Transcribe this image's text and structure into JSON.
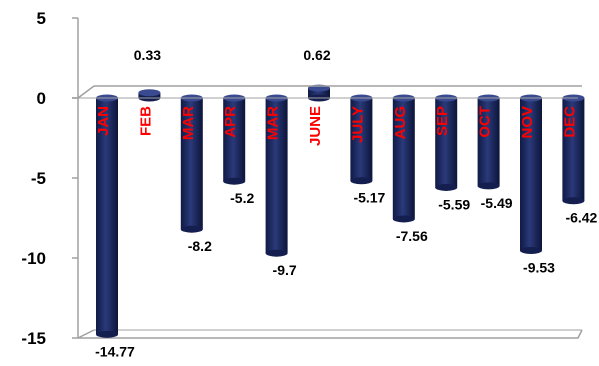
{
  "chart_data": {
    "type": "bar",
    "title": "",
    "xlabel": "",
    "ylabel": "",
    "categories": [
      "JAN",
      "FEB",
      "MAR",
      "APR",
      "MAR",
      "JUNE",
      "JULY",
      "AUG",
      "SEP",
      "OCT",
      "NOV",
      "DEC"
    ],
    "values": [
      -14.77,
      0.33,
      -8.2,
      -5.2,
      -9.7,
      0.62,
      -5.17,
      -7.56,
      -5.59,
      -5.49,
      -9.53,
      -6.42
    ],
    "value_labels": [
      "-14.77",
      "0.33",
      "-8.2",
      "-5.2",
      "-9.7",
      "0.62",
      "-5.17",
      "-7.56",
      "-5.59",
      "-5.49",
      "-9.53",
      "-6.42"
    ],
    "ylim": [
      -15,
      5
    ],
    "yticks": [
      "5",
      "0",
      "-5",
      "-10",
      "-15"
    ],
    "grid": false,
    "colors": {
      "bar": "#1f2a5e",
      "category_label": "#ff0000",
      "axis": "#a0a0a0"
    }
  }
}
